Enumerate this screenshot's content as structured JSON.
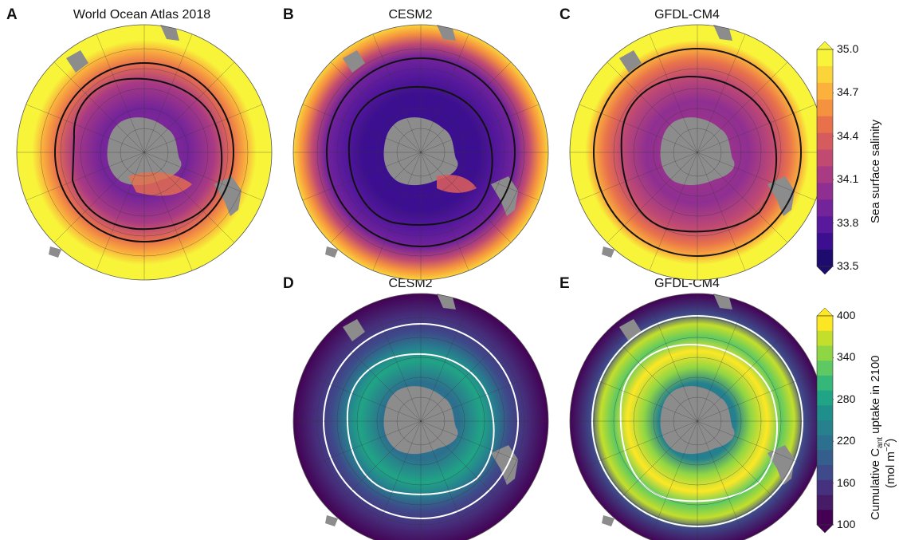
{
  "panels": {
    "A": {
      "letter": "A",
      "title": "World Ocean Atlas 2018"
    },
    "B": {
      "letter": "B",
      "title": "CESM2"
    },
    "C": {
      "letter": "C",
      "title": "GFDL-CM4"
    },
    "D": {
      "letter": "D",
      "title": "CESM2"
    },
    "E": {
      "letter": "E",
      "title": "GFDL-CM4"
    }
  },
  "colorbars": {
    "salinity": {
      "label": "Sea surface salinity",
      "ticks": [
        "35.0",
        "34.7",
        "34.4",
        "34.1",
        "33.8",
        "33.5"
      ],
      "colors": [
        "#f7f43a",
        "#fbd43a",
        "#fbb13c",
        "#f5923f",
        "#e8714c",
        "#d65b5f",
        "#c04a72",
        "#a93a84",
        "#8f2f92",
        "#74249a",
        "#58199c",
        "#3b0f8f",
        "#1d0b6e"
      ]
    },
    "uptake": {
      "label_prefix": "Cumulative C",
      "label_sub": "ant",
      "label_suffix": " uptake in 2100",
      "units_prefix": "(mol m",
      "units_sup": "−2",
      "units_suffix": ")",
      "ticks": [
        "400",
        "340",
        "280",
        "220",
        "160",
        "100"
      ],
      "colors": [
        "#fde725",
        "#c3df2b",
        "#8fd644",
        "#5ec962",
        "#35b779",
        "#20a486",
        "#1f8f8c",
        "#26808e",
        "#2d6f8e",
        "#355e8d",
        "#3e4a89",
        "#46317e",
        "#471c66",
        "#440154"
      ]
    }
  },
  "map_colors": {
    "land": "#8c8c8c",
    "outside_salinity": "#f3ef3d",
    "front_A": "#111111",
    "front_D": "#ffffff"
  }
}
